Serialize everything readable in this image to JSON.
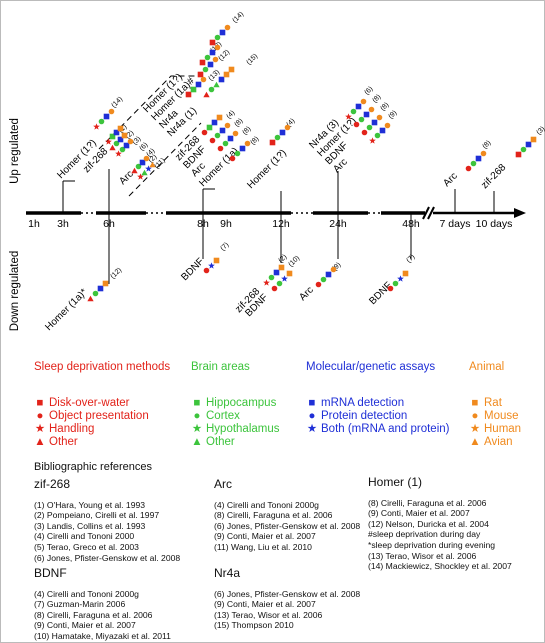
{
  "axis": {
    "up_label": "Up regulated",
    "down_label": "Down regulated",
    "ticks": [
      "1h",
      "3h",
      "6h",
      "8h",
      "9h",
      "12h",
      "24h",
      "48h",
      "7 days",
      "10 days"
    ]
  },
  "colors": {
    "sleep": "#e2231a",
    "brain": "#3cc43c",
    "assay": "#1f2fd6",
    "animal": "#f08a1e"
  },
  "up": {
    "t3h": [
      "Homer (1?)"
    ],
    "t6h": [
      "zif-268",
      "Arc"
    ],
    "t8h_upper": [
      "Homer (1?)",
      "Homer (1a)#",
      "Nr4a",
      "Nr4a (1)"
    ],
    "t8h_lower": [
      "zif-268",
      "BDNF",
      "Arc",
      "Homer (1a)"
    ],
    "t12h": [
      "Homer (1?)"
    ],
    "t24h": [
      "Nr4a (3)",
      "Homer (1?)",
      "BDNF",
      "Arc"
    ],
    "t7d": [
      "Arc"
    ],
    "t10d": [
      "zif-268"
    ],
    "cites": {
      "homer3h": "(14)",
      "zif6": [
        "(1)",
        "(2)",
        "(3)",
        "(6)",
        "(4)"
      ],
      "arc6": [
        "(2)",
        "(11)"
      ],
      "homer8": "(14)",
      "homer8b": "(13)",
      "homer8c": "(12)",
      "nr4a8": "(13)",
      "nr4a18": "(15)",
      "zif8": "(4)",
      "bdnf8": "(8)",
      "arc8": "(8)",
      "homer1a8": "(8)",
      "homer12": "(4)",
      "nr4a24": "(6)",
      "homer24": "(8)",
      "bdnf24": "(8)",
      "arc24": "(9)",
      "arc7d": "(8)",
      "zif10d": "(3)"
    }
  },
  "down": {
    "t6h": [
      "Homer (1a)*"
    ],
    "t8h": [
      "BDNF"
    ],
    "t12h": [
      "zif-268",
      "BDNF"
    ],
    "t24h": [
      "Arc"
    ],
    "t48h": [
      "BDNF"
    ],
    "cites": {
      "homer6": "(12)",
      "bdnf8": "(7)",
      "zif12": "(2)",
      "bdnf12": "(10)",
      "arc24": "(9)",
      "bdnf48": "(7)"
    }
  },
  "legend": {
    "sleep": {
      "title": "Sleep deprivation methods",
      "items": [
        [
          "■",
          "Disk-over-water"
        ],
        [
          "●",
          "Object presentation"
        ],
        [
          "★",
          "Handling"
        ],
        [
          "▲",
          "Other"
        ]
      ]
    },
    "brain": {
      "title": "Brain areas",
      "items": [
        [
          "■",
          "Hippocampus"
        ],
        [
          "●",
          "Cortex"
        ],
        [
          "★",
          "Hypothalamus"
        ],
        [
          "▲",
          "Other"
        ]
      ]
    },
    "assay": {
      "title": "Molecular/genetic assays",
      "items": [
        [
          "■",
          "mRNA detection"
        ],
        [
          "●",
          "Protein detection"
        ],
        [
          "★",
          "Both (mRNA and protein)"
        ]
      ]
    },
    "animal": {
      "title": "Animal",
      "items": [
        [
          "■",
          "Rat"
        ],
        [
          "●",
          "Mouse"
        ],
        [
          "★",
          "Human"
        ],
        [
          "▲",
          "Avian"
        ]
      ]
    }
  },
  "references": {
    "title": "Bibliographic references",
    "zif268": {
      "head": "zif-268",
      "items": [
        "(1) O'Hara, Young et al. 1993",
        "(2) Pompeiano, Cirelli et al. 1997",
        "(3) Landis, Collins et al. 1993",
        "(4) Cirelli and Tononi 2000",
        "(5) Terao, Greco et al. 2003",
        "(6) Jones, Pfister-Genskow et al. 2008"
      ]
    },
    "arc": {
      "head": "Arc",
      "items": [
        "(4) Cirelli and Tononi 2000g",
        "(8) Cirelli, Faraguna et al. 2006",
        "(6) Jones, Pfister-Genskow et al. 2008",
        "(9) Conti, Maier et al. 2007",
        "(11) Wang, Liu et al. 2010"
      ]
    },
    "homer": {
      "head": "Homer (1)",
      "items": [
        "(8) Cirelli, Faraguna et al. 2006",
        "(9) Conti, Maier et al. 2007",
        "(12) Nelson, Duricka et al. 2004",
        "#sleep deprivation during day",
        "*sleep deprivation during evening",
        "(13) Terao, Wisor et al. 2006",
        "(14) Mackiewicz, Shockley et al. 2007"
      ]
    },
    "bdnf": {
      "head": "BDNF",
      "items": [
        "(4) Cirelli and Tononi 2000g",
        "(7) Guzman-Marin 2006",
        "(8) Cirelli, Faraguna et al. 2006",
        "(9) Conti, Maier et al. 2007",
        "(10) Hamatake, Miyazaki et al. 2011"
      ]
    },
    "nr4a": {
      "head": "Nr4a",
      "items": [
        "(6) Jones, Pfister-Genskow et al. 2008",
        "(9) Conti, Maier et al. 2007",
        "(13) Terao, Wisor et al. 2006",
        "(15) Thompson 2010"
      ]
    }
  }
}
